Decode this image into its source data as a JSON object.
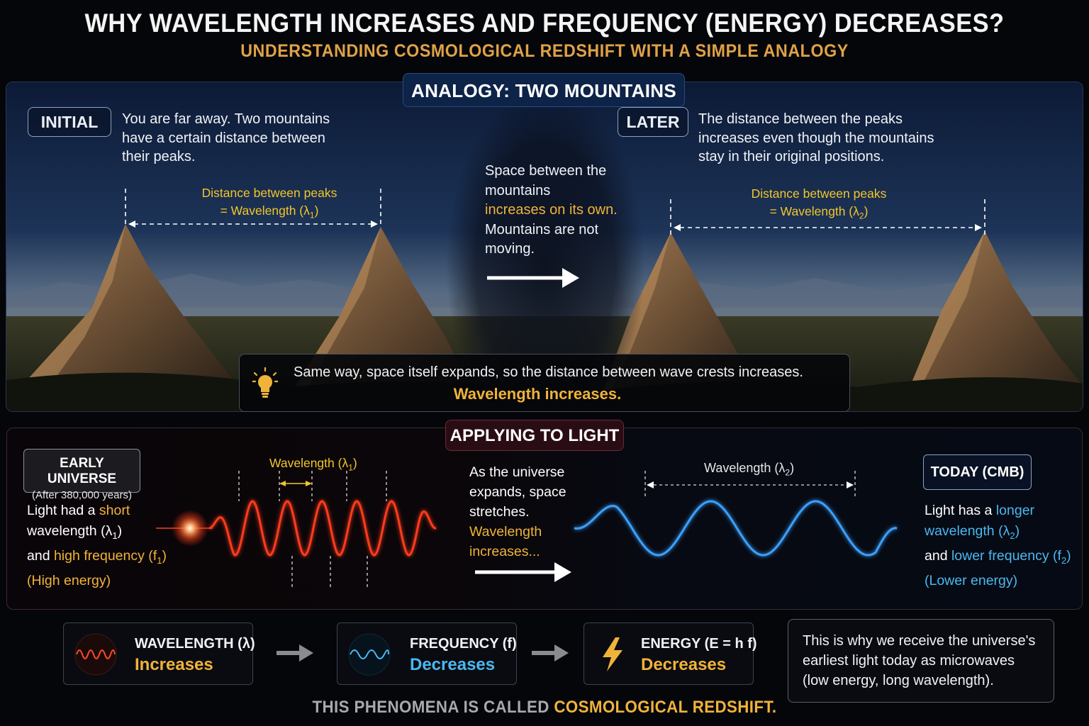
{
  "title": "WHY WAVELENGTH INCREASES AND FREQUENCY (ENERGY) DECREASES?",
  "subtitle": "UNDERSTANDING COSMOLOGICAL REDSHIFT WITH A SIMPLE ANALOGY",
  "analogy": {
    "heading": "ANALOGY: TWO MOUNTAINS",
    "initial": {
      "tag": "INITIAL",
      "text": "You are far away. Two mountains have a certain distance between their peaks.",
      "peak_label_1": "Distance between peaks",
      "peak_label_2": "= Wavelength (λ",
      "peak_sub": "1",
      "peak_close": ")"
    },
    "middle": {
      "line1": "Space between the mountains",
      "highlight": "increases on its own.",
      "line2": "Mountains are not moving."
    },
    "later": {
      "tag": "LATER",
      "text": "The distance between the peaks increases even though the mountains stay in their original positions.",
      "peak_label_1": "Distance between peaks",
      "peak_label_2": "= Wavelength (λ",
      "peak_sub": "2",
      "peak_close": ")"
    },
    "callout": {
      "text": "Same way, space itself expands, so the distance between wave crests increases.",
      "highlight": "Wavelength increases."
    }
  },
  "light": {
    "heading": "APPLYING TO LIGHT",
    "early": {
      "tag": "EARLY UNIVERSE",
      "tag_sub": "(After 380,000 years)",
      "t1": "Light had a ",
      "t1h": "short",
      "t2": "wavelength (λ",
      "t2s": "1",
      "t2c": ")",
      "t3": "and ",
      "t3h": "high frequency (f",
      "t3s": "1",
      "t3c": ")",
      "t4": "(High energy)",
      "wave_label": "Wavelength (λ",
      "wave_sub": "1",
      "wave_close": ")"
    },
    "middle": {
      "text": "As the universe expands, space stretches.",
      "highlight": "Wavelength increases..."
    },
    "today": {
      "tag": "TODAY (CMB)",
      "t1": "Light has a ",
      "t1h": "longer",
      "t2": "wavelength (λ",
      "t2s": "2",
      "t2c": ")",
      "t3": "and ",
      "t3h": "lower frequency (f",
      "t3s": "2",
      "t3c": ")",
      "t4": "(Lower energy)",
      "wave_label": "Wavelength (λ",
      "wave_sub": "2",
      "wave_close": ")"
    }
  },
  "summary": [
    {
      "label": "WAVELENGTH (λ)",
      "value": "Increases",
      "color": "#f0b33a",
      "icon": "red-wave-icon"
    },
    {
      "label": "FREQUENCY (f)",
      "value": "Decreases",
      "color": "#4ab8f0",
      "icon": "blue-wave-icon"
    },
    {
      "label": "ENERGY (E = h f)",
      "value": "Decreases",
      "color": "#f0b33a",
      "icon": "lightning-icon"
    }
  ],
  "final_note": "This is why we receive the universe's earliest light today as microwaves (low energy, long wavelength).",
  "footer": {
    "prefix": "THIS PHENOMENA IS CALLED ",
    "highlight": "COSMOLOGICAL REDSHIFT."
  },
  "colors": {
    "gold": "#f0b33a",
    "yellow": "#f2c62a",
    "cyan": "#4ab8f0",
    "red_wave": "#ff3a1e",
    "blue_wave": "#3aa0ff"
  }
}
